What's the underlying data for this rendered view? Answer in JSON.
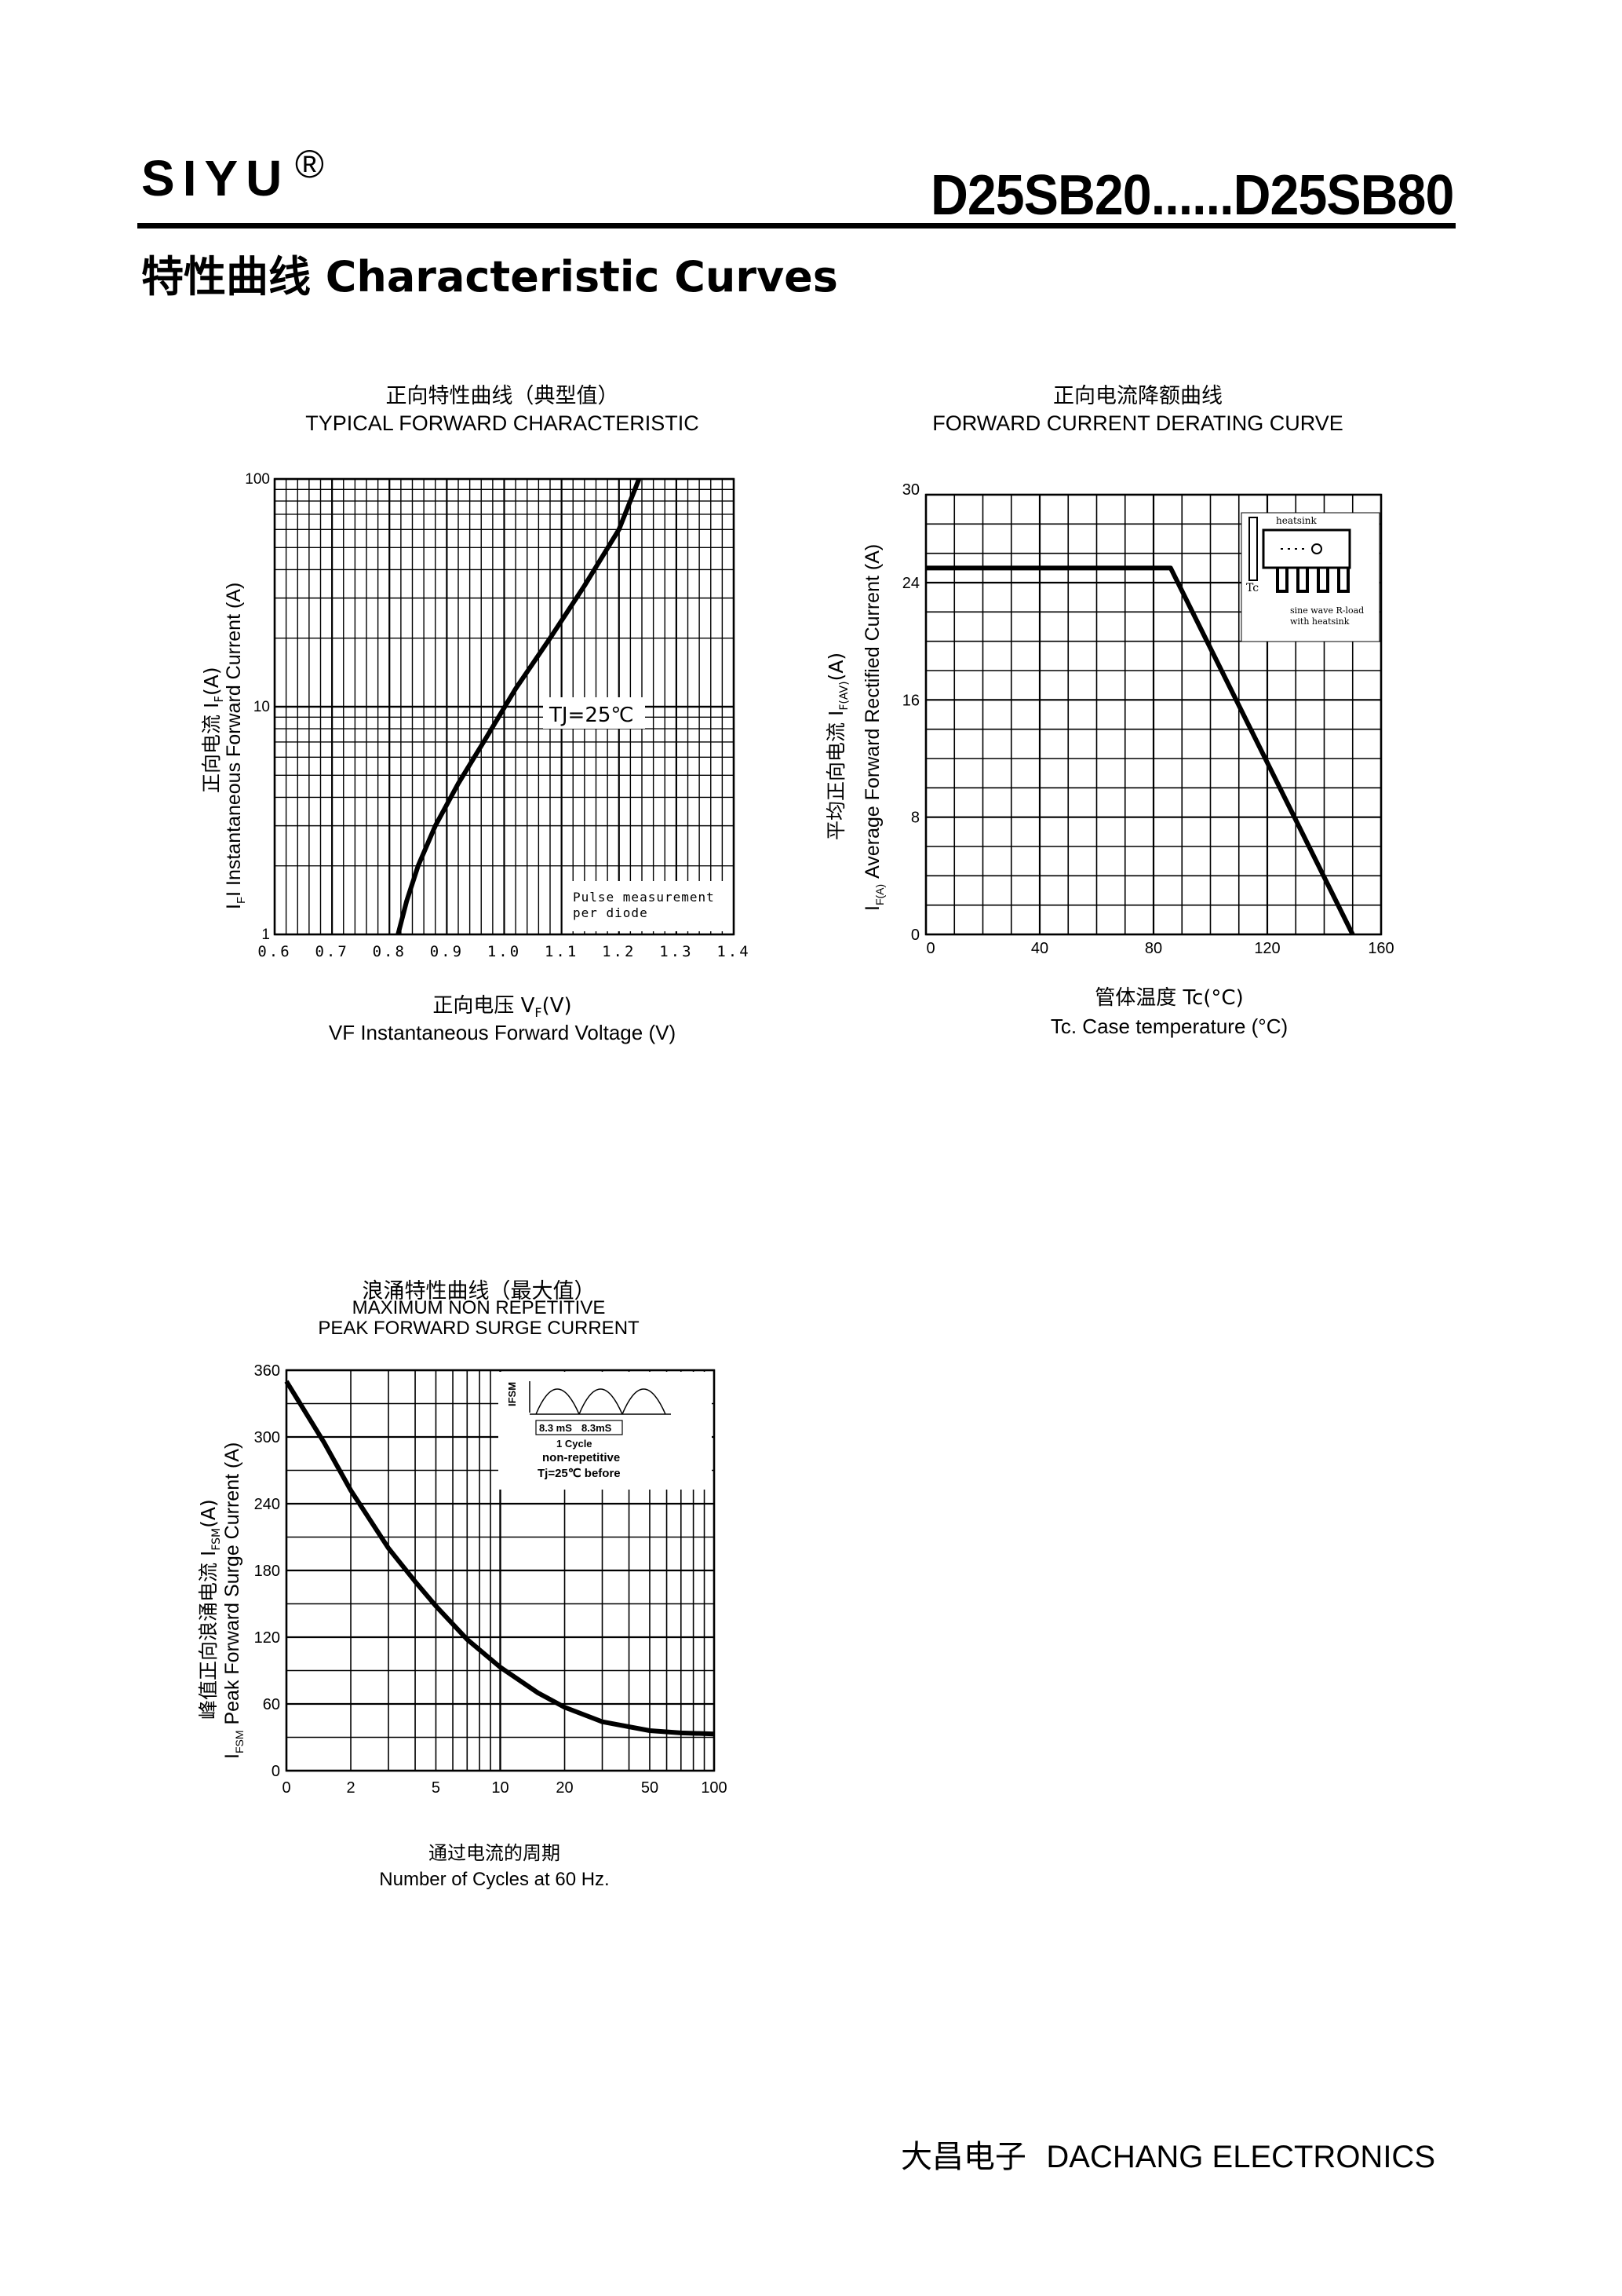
{
  "header": {
    "brand": "SIYU",
    "registered_mark": "®",
    "part_range": "D25SB20......D25SB80",
    "section_title": "特性曲线   Characteristic Curves"
  },
  "charts": {
    "forward": {
      "title_cn": "正向特性曲线（典型值）",
      "title_en": "TYPICAL FORWARD CHARACTERISTIC",
      "xlabel_cn": "正向电压    V",
      "xlabel_sub": "F",
      "xlabel_unit": "(V)",
      "xlabel_en": "VF  Instantaneous Forward Voltage (V)",
      "ylabel_cn": "正向电流    I",
      "ylabel_cn_sub": "F",
      "ylabel_cn_unit": "(A)",
      "ylabel_en": "I  Instantaneous Forward Current (A)",
      "ylabel_en_sub": "F",
      "annotation": "TJ=25℃",
      "note_line1": "Pulse measurement",
      "note_line2": "per diode"
    },
    "derating": {
      "title_cn": "正向电流降额曲线",
      "title_en": "FORWARD CURRENT DERATING CURVE",
      "xlabel_cn": "管体温度  Tc(°C)",
      "xlabel_en": "Tc. Case temperature (°C)",
      "ylabel_cn": "平均正向电流     I",
      "ylabel_cn_sub": "F(AV)",
      "ylabel_cn_unit": "(A)",
      "ylabel_en": "Average Forward Rectified Current (A)",
      "ylabel_en_prefix": "I",
      "ylabel_en_sub": "F(A)",
      "inset_heatsink": "heatsink",
      "inset_tc": "Tc",
      "inset_line1": "sine wave R-load",
      "inset_line2": "with heatsink"
    },
    "surge": {
      "title_cn": "浪涌特性曲线（最大值）",
      "title_en1": "MAXIMUM NON REPETITIVE",
      "title_en2": "PEAK FORWARD SURGE CURRENT",
      "xlabel_cn": "通过电流的周期",
      "xlabel_en": "Number  of  Cycles at 60 Hz.",
      "ylabel_cn": "峰值正向浪涌电流  I",
      "ylabel_cn_sub": "FSM",
      "ylabel_cn_unit": "(A)",
      "ylabel_en": "Peak Forward Surge Current (A)",
      "ylabel_en_prefix": "I",
      "ylabel_en_sub": "FSM",
      "inset_ifsm": "I",
      "inset_ifsm_sub": "FSM",
      "inset_t1": "8.3 mS",
      "inset_t2": "8.3mS",
      "inset_cycle": "1 Cycle",
      "inset_nonrep": "non-repetitive",
      "inset_tj": "Tj=25℃   before"
    }
  },
  "chart_data": [
    {
      "type": "line",
      "title": "TYPICAL FORWARD CHARACTERISTIC",
      "xlabel": "VF  Instantaneous Forward Voltage (V)",
      "ylabel": "I  Instantaneous Forward Current (A)",
      "xlim": [
        0.6,
        1.4
      ],
      "ylim": [
        1,
        100
      ],
      "yscale": "log",
      "x_ticks": [
        "0.6",
        "0.7",
        "0.8",
        "0.9",
        "1.0",
        "1.1",
        "1.2",
        "1.3",
        "1.4"
      ],
      "y_ticks": [
        "1",
        "10",
        "100"
      ],
      "grid": true,
      "series": [
        {
          "x": [
            0.815,
            0.83,
            0.85,
            0.88,
            0.92,
            0.97,
            1.02,
            1.08,
            1.14,
            1.2,
            1.235
          ],
          "y": [
            1.0,
            1.4,
            2.0,
            3.0,
            4.6,
            7.4,
            12,
            20,
            34,
            60,
            100
          ]
        }
      ]
    },
    {
      "type": "line",
      "title": "FORWARD CURRENT DERATING CURVE",
      "xlabel": "Tc. Case temperature (°C)",
      "ylabel": "Average Forward Rectified Current (A)",
      "xlim": [
        0,
        160
      ],
      "ylim": [
        0,
        30
      ],
      "x_ticks": [
        "0",
        "40",
        "80",
        "120",
        "160"
      ],
      "y_ticks": [
        "0",
        "8",
        "16",
        "24",
        "30"
      ],
      "grid": true,
      "series": [
        {
          "x": [
            0,
            86,
            150
          ],
          "y": [
            25,
            25,
            0
          ]
        }
      ]
    },
    {
      "type": "line",
      "title": "MAXIMUM NON REPETITIVE PEAK FORWARD SURGE CURRENT",
      "xlabel": "Number  of  Cycles at 60 Hz.",
      "ylabel": "Peak Forward Surge Current (A)",
      "xscale": "log",
      "xlim": [
        1,
        100
      ],
      "ylim": [
        0,
        360
      ],
      "x_ticks": [
        "0",
        "2",
        "5",
        "10",
        "20",
        "50",
        "100"
      ],
      "y_ticks": [
        "0",
        "60",
        "120",
        "180",
        "240",
        "300",
        "360"
      ],
      "grid": true,
      "series": [
        {
          "x": [
            1,
            1.5,
            2,
            3,
            4,
            5,
            7,
            10,
            15,
            20,
            30,
            50,
            70,
            100
          ],
          "y": [
            350,
            295,
            252,
            200,
            170,
            148,
            118,
            93,
            70,
            57,
            44,
            36,
            34,
            33
          ]
        }
      ]
    }
  ],
  "footer": {
    "cn": "大昌电子",
    "en": "DACHANG ELECTRONICS"
  }
}
